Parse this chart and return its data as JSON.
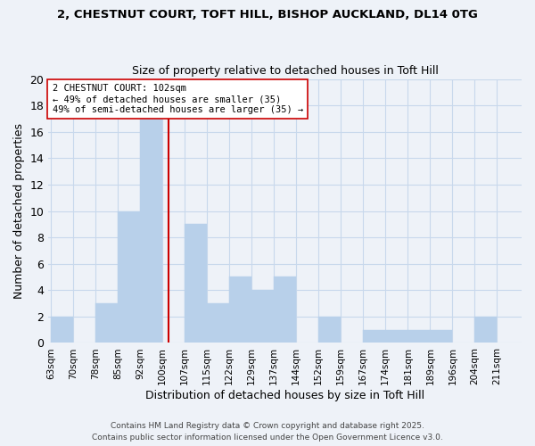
{
  "title_line1": "2, CHESTNUT COURT, TOFT HILL, BISHOP AUCKLAND, DL14 0TG",
  "title_line2": "Size of property relative to detached houses in Toft Hill",
  "xlabel": "Distribution of detached houses by size in Toft Hill",
  "ylabel": "Number of detached properties",
  "bar_labels": [
    "63sqm",
    "70sqm",
    "78sqm",
    "85sqm",
    "92sqm",
    "100sqm",
    "107sqm",
    "115sqm",
    "122sqm",
    "129sqm",
    "137sqm",
    "144sqm",
    "152sqm",
    "159sqm",
    "167sqm",
    "174sqm",
    "181sqm",
    "189sqm",
    "196sqm",
    "204sqm",
    "211sqm"
  ],
  "bar_values": [
    2,
    0,
    3,
    10,
    17,
    0,
    9,
    3,
    5,
    4,
    5,
    0,
    2,
    0,
    1,
    1,
    1,
    1,
    0,
    2,
    0
  ],
  "bin_width": 7,
  "bar_color": "#b8d0ea",
  "bar_edgecolor": "#b8d0ea",
  "vline_x": 100,
  "vline_color": "#cc0000",
  "annotation_line1": "2 CHESTNUT COURT: 102sqm",
  "annotation_line2": "← 49% of detached houses are smaller (35)",
  "annotation_line3": "49% of semi-detached houses are larger (35) →",
  "annotation_box_edgecolor": "#cc0000",
  "annotation_box_facecolor": "#ffffff",
  "ylim": [
    0,
    20
  ],
  "yticks": [
    0,
    2,
    4,
    6,
    8,
    10,
    12,
    14,
    16,
    18,
    20
  ],
  "grid_color": "#c8d8ec",
  "background_color": "#eef2f8",
  "footer_line1": "Contains HM Land Registry data © Crown copyright and database right 2025.",
  "footer_line2": "Contains public sector information licensed under the Open Government Licence v3.0."
}
